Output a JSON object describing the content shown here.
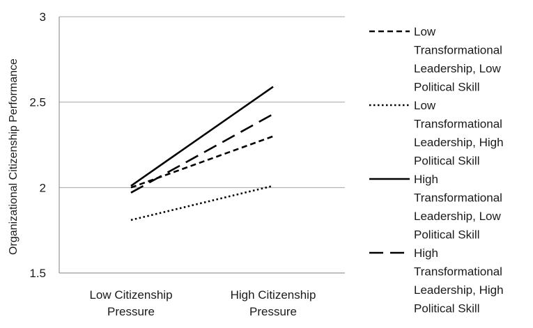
{
  "chart_data": {
    "type": "line",
    "title": "",
    "xlabel": "",
    "ylabel": "Organizational Citizenship Performance",
    "categories": [
      [
        "Low Citizenship",
        "Pressure"
      ],
      [
        "High Citizenship",
        "Pressure"
      ]
    ],
    "ylim": [
      1.5,
      3
    ],
    "yticks": [
      "1.5",
      "2",
      "2.5",
      "3"
    ],
    "ytick_values": [
      1.5,
      2,
      2.5,
      3
    ],
    "grid": true,
    "legend_position": "right",
    "series": [
      {
        "name": [
          "Low",
          "Transformational",
          "Leadership, Low",
          "Political Skill"
        ],
        "values": [
          2.0,
          2.3
        ],
        "dash": "short-dash"
      },
      {
        "name": [
          "Low",
          "Transformational",
          "Leadership, High",
          "Political Skill"
        ],
        "values": [
          1.81,
          2.01
        ],
        "dash": "dotted"
      },
      {
        "name": [
          "High",
          "Transformational",
          "Leadership, Low",
          "Political Skill"
        ],
        "values": [
          2.01,
          2.59
        ],
        "dash": "solid"
      },
      {
        "name": [
          "High",
          "Transformational",
          "Leadership, High",
          "Political Skill"
        ],
        "values": [
          1.97,
          2.43
        ],
        "dash": "long-dash"
      }
    ],
    "colors": {
      "line": "#000000",
      "grid": "#a6a6a6",
      "axis": "#808080"
    }
  }
}
